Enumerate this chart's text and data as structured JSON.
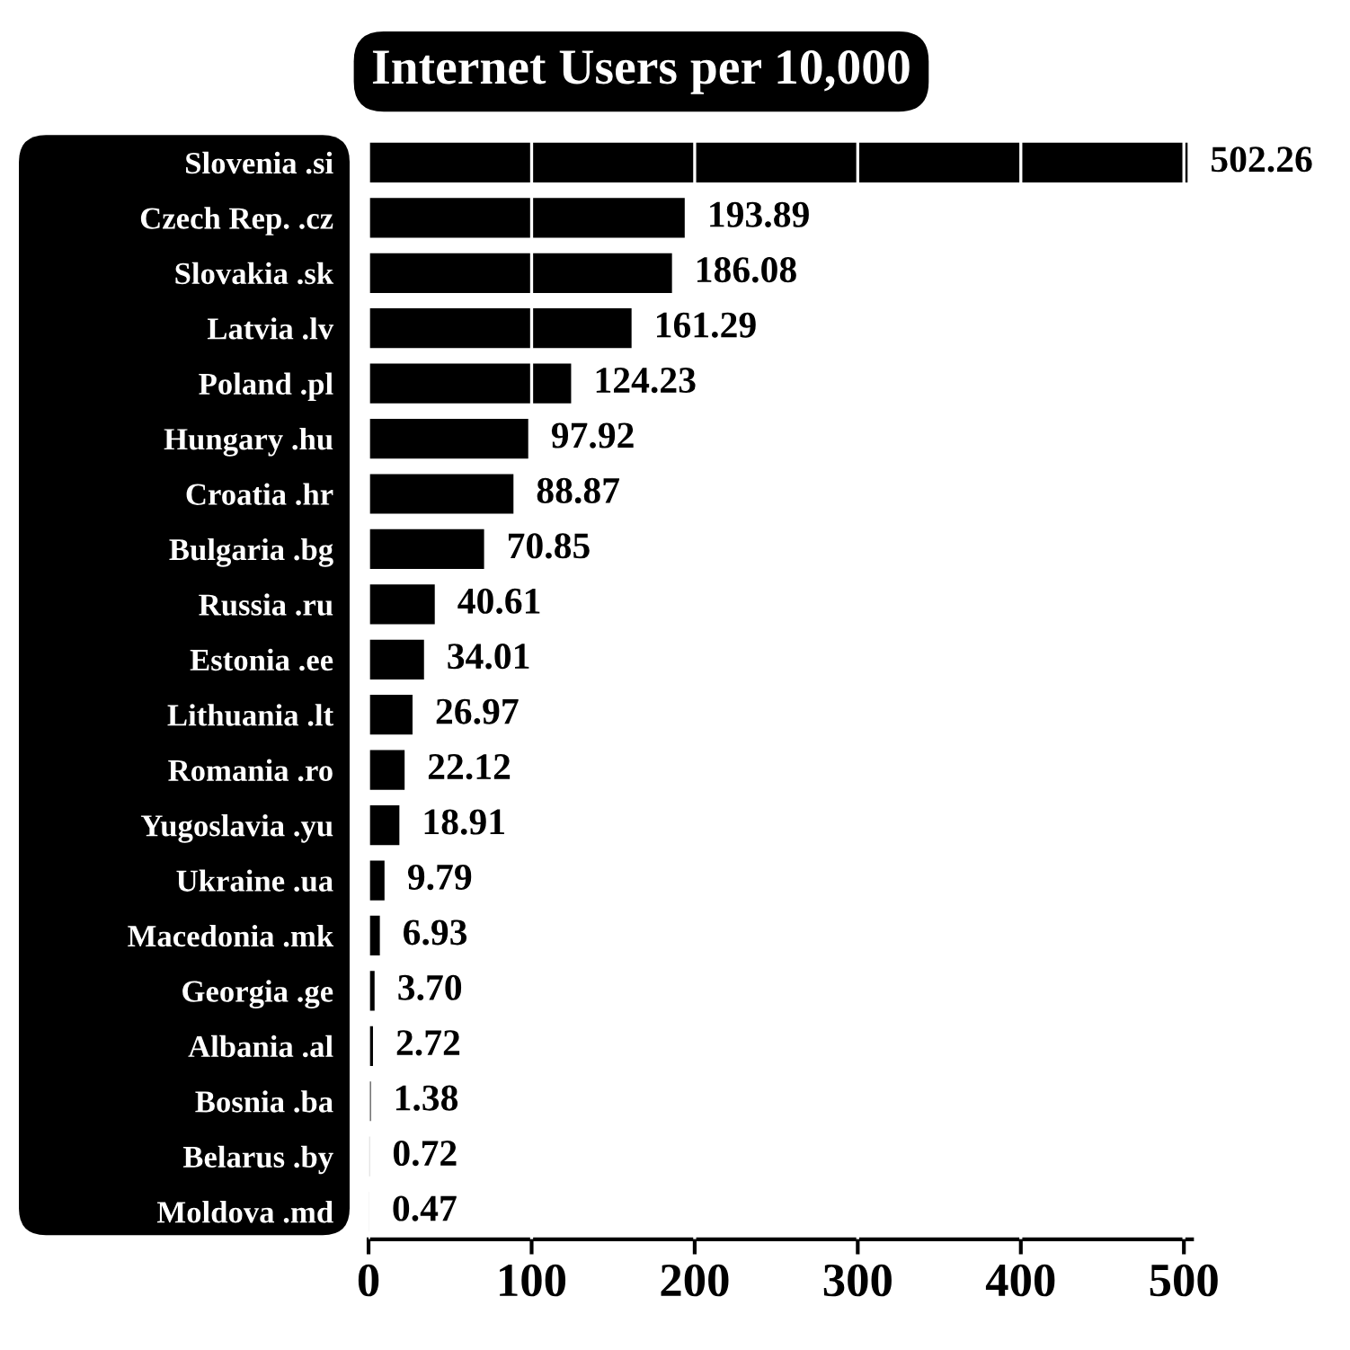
{
  "chart_data": {
    "type": "bar",
    "orientation": "horizontal",
    "title": "Internet Users per 10,000",
    "categories": [
      "Slovenia .si",
      "Czech Rep. .cz",
      "Slovakia .sk",
      "Latvia .lv",
      "Poland .pl",
      "Hungary .hu",
      "Croatia .hr",
      "Bulgaria .bg",
      "Russia .ru",
      "Estonia .ee",
      "Lithuania .lt",
      "Romania .ro",
      "Yugoslavia .yu",
      "Ukraine .ua",
      "Macedonia .mk",
      "Georgia .ge",
      "Albania .al",
      "Bosnia .ba",
      "Belarus .by",
      "Moldova .md"
    ],
    "values": [
      502.26,
      193.89,
      186.08,
      161.29,
      124.23,
      97.92,
      88.87,
      70.85,
      40.61,
      34.01,
      26.97,
      22.12,
      18.91,
      9.79,
      6.93,
      3.7,
      2.72,
      1.38,
      0.72,
      0.47
    ],
    "value_labels": [
      "502.26",
      "193.89",
      "186.08",
      "161.29",
      "124.23",
      "97.92",
      "88.87",
      "70.85",
      "40.61",
      "34.01",
      "26.97",
      "22.12",
      "18.91",
      "9.79",
      "6.93",
      "3.70",
      "2.72",
      "1.38",
      "0.72",
      "0.47"
    ],
    "color": "#000000",
    "xlim": [
      0,
      505
    ],
    "xticks": [
      0,
      100,
      200,
      300,
      400,
      500
    ],
    "grid": "x",
    "legend": false
  }
}
